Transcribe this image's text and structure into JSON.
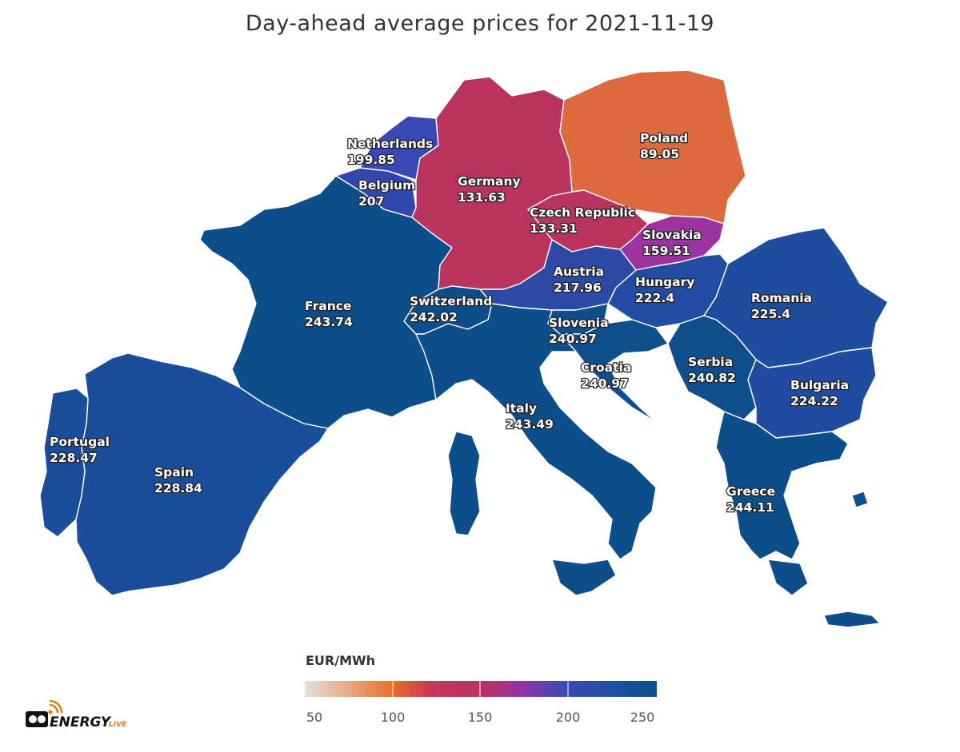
{
  "title": "Day-ahead average prices for 2021-11-19",
  "legend": {
    "title": "EUR/MWh",
    "min": 50,
    "max": 255,
    "ticks": [
      "50",
      "100",
      "150",
      "200",
      "250"
    ],
    "colors": [
      "#e3e1de",
      "#e9742d",
      "#c4355a",
      "#b53367",
      "#9b34a0",
      "#3a4bb3",
      "#264fa5",
      "#0b4e8a"
    ]
  },
  "countries": [
    {
      "name": "France",
      "value": "243.74",
      "color": "#0b4e8a"
    },
    {
      "name": "Spain",
      "value": "228.84",
      "color": "#1a4d9a"
    },
    {
      "name": "Portugal",
      "value": "228.47",
      "color": "#1a4d9a"
    },
    {
      "name": "Germany",
      "value": "131.63",
      "color": "#b9335e"
    },
    {
      "name": "Poland",
      "value": "89.05",
      "color": "#dc6a3e"
    },
    {
      "name": "Netherlands",
      "value": "199.85",
      "color": "#3a48b5"
    },
    {
      "name": "Belgium",
      "value": "207",
      "color": "#3246ad"
    },
    {
      "name": "Czech Republic",
      "value": "133.31",
      "color": "#b9345f"
    },
    {
      "name": "Slovakia",
      "value": "159.51",
      "color": "#9c33a0"
    },
    {
      "name": "Austria",
      "value": "217.96",
      "color": "#2b4aa5"
    },
    {
      "name": "Hungary",
      "value": "222.4",
      "color": "#214ca1"
    },
    {
      "name": "Romania",
      "value": "225.4",
      "color": "#1e4d9f"
    },
    {
      "name": "Switzerland",
      "value": "242.02",
      "color": "#0c4e8b"
    },
    {
      "name": "Slovenia",
      "value": "240.97",
      "color": "#0d4e8c"
    },
    {
      "name": "Croatia",
      "value": "240.97",
      "color": "#0d4e8c"
    },
    {
      "name": "Serbia",
      "value": "240.82",
      "color": "#0e4e8c"
    },
    {
      "name": "Bulgaria",
      "value": "224.22",
      "color": "#1f4ca0"
    },
    {
      "name": "Italy",
      "value": "243.49",
      "color": "#0b4e8a"
    },
    {
      "name": "Greece",
      "value": "244.11",
      "color": "#0b4e8a"
    }
  ],
  "logo": {
    "text": "ENERGY",
    "sub": "LIVE"
  }
}
